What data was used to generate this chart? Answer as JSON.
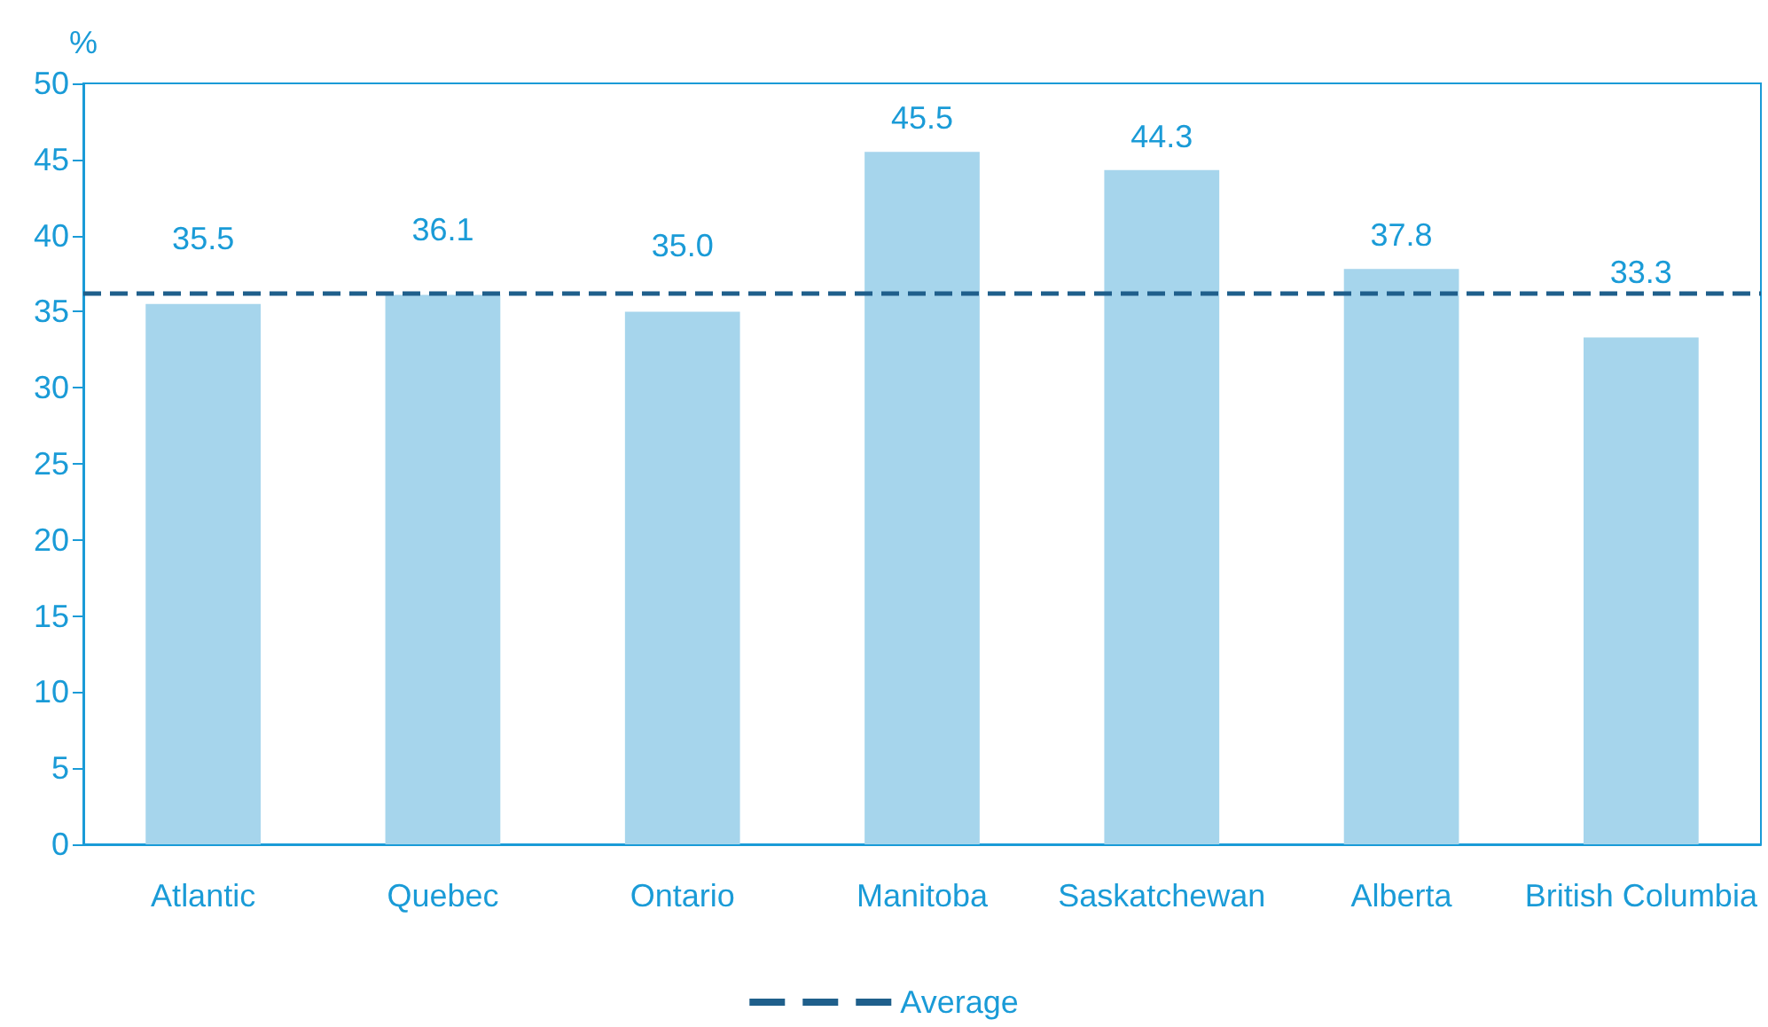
{
  "chart_data": {
    "type": "bar",
    "ylabel": "%",
    "categories": [
      "Atlantic",
      "Quebec",
      "Ontario",
      "Manitoba",
      "Saskatchewan",
      "Alberta",
      "British Columbia"
    ],
    "values": [
      35.5,
      36.1,
      35.0,
      45.5,
      44.3,
      37.8,
      33.3
    ],
    "color": "#a6d5ec",
    "ylim": [
      0,
      50
    ],
    "yticks": [
      0,
      5,
      10,
      15,
      20,
      25,
      30,
      35,
      40,
      45,
      50
    ],
    "value_labels": [
      "35.5",
      "36.1",
      "35.0",
      "45.5",
      "44.3",
      "37.8",
      "33.3"
    ],
    "grid": false,
    "legend": "bottom",
    "ref_lines": [
      {
        "axis": "y",
        "value": 36.2,
        "label": "Average",
        "color": "#1f5f8b",
        "line_style": "dashed"
      }
    ]
  }
}
